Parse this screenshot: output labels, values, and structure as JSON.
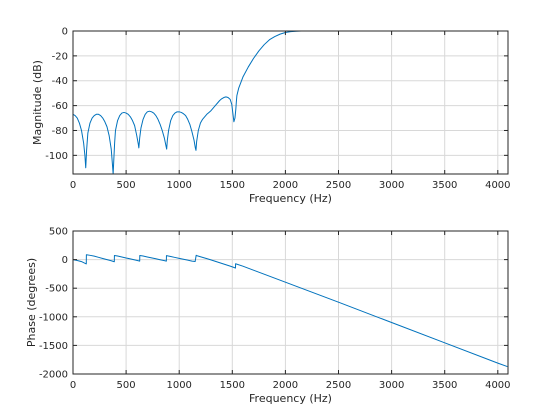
{
  "chart_data": [
    {
      "type": "line",
      "title": "",
      "xlabel": "Frequency (Hz)",
      "ylabel": "Magnitude (dB)",
      "xlim": [
        0,
        4096
      ],
      "ylim": [
        -115,
        0
      ],
      "xticks": [
        0,
        500,
        1000,
        1500,
        2000,
        2500,
        3000,
        3500,
        4000
      ],
      "yticks": [
        0,
        -20,
        -40,
        -60,
        -80,
        -100
      ],
      "grid": true,
      "color": "#0072bd",
      "series": [
        {
          "x": [
            0,
            20,
            40,
            60,
            80,
            100,
            112,
            120,
            128,
            140,
            160,
            180,
            200,
            220,
            240,
            260,
            280,
            300,
            320,
            340,
            360,
            372,
            378,
            384,
            392,
            400,
            420,
            440,
            460,
            480,
            500,
            520,
            540,
            560,
            580,
            600,
            615,
            620,
            628,
            640,
            660,
            680,
            700,
            720,
            740,
            760,
            780,
            800,
            820,
            840,
            860,
            877,
            882,
            888,
            900,
            920,
            940,
            960,
            980,
            1000,
            1020,
            1040,
            1060,
            1080,
            1100,
            1120,
            1140,
            1152,
            1158,
            1164,
            1180,
            1200,
            1220,
            1240,
            1260,
            1280,
            1300,
            1320,
            1340,
            1360,
            1380,
            1400,
            1420,
            1440,
            1460,
            1480,
            1495,
            1505,
            1515,
            1525,
            1533,
            1538,
            1543,
            1560,
            1600,
            1650,
            1700,
            1750,
            1800,
            1850,
            1900,
            1950,
            2000,
            2050,
            2100,
            2150,
            2200,
            2300,
            2500,
            3000,
            3500,
            4096
          ],
          "y": [
            -67,
            -68,
            -70,
            -74,
            -80,
            -90,
            -100,
            -110,
            -96,
            -82,
            -74,
            -70,
            -68,
            -67,
            -67,
            -68,
            -70,
            -73,
            -77,
            -84,
            -95,
            -108,
            -115,
            -104,
            -90,
            -80,
            -72,
            -68,
            -66,
            -65.5,
            -66,
            -67,
            -69,
            -72,
            -76,
            -84,
            -91,
            -94,
            -86,
            -78,
            -71,
            -67,
            -65,
            -64.5,
            -65,
            -66,
            -68,
            -71,
            -75,
            -80,
            -86,
            -93,
            -95,
            -88,
            -80,
            -72,
            -68,
            -66,
            -65,
            -65,
            -65.5,
            -66.5,
            -68,
            -71,
            -75,
            -81,
            -88,
            -94,
            -96,
            -89,
            -80,
            -74,
            -71,
            -69,
            -67,
            -65.5,
            -64,
            -62,
            -60,
            -58,
            -56,
            -54.5,
            -53.5,
            -53,
            -53.5,
            -55,
            -59,
            -66,
            -73,
            -70,
            -63,
            -57,
            -52,
            -46,
            -37,
            -29,
            -22,
            -16,
            -11,
            -7,
            -4.5,
            -2.5,
            -1.2,
            -0.5,
            -0.2,
            0,
            0,
            0,
            0,
            0,
            0,
            0
          ]
        }
      ]
    },
    {
      "type": "line",
      "title": "",
      "xlabel": "Frequency (Hz)",
      "ylabel": "Phase (degrees)",
      "xlim": [
        0,
        4096
      ],
      "ylim": [
        -2000,
        500
      ],
      "xticks": [
        0,
        500,
        1000,
        1500,
        2000,
        2500,
        3000,
        3500,
        4000
      ],
      "yticks": [
        500,
        0,
        -500,
        -1000,
        -1500,
        -2000
      ],
      "grid": true,
      "color": "#0072bd",
      "series": [
        {
          "x": [
            0,
            40,
            80,
            125,
            126,
            160,
            200,
            240,
            280,
            320,
            360,
            389,
            390,
            420,
            460,
            500,
            540,
            580,
            620,
            628,
            629,
            660,
            700,
            740,
            780,
            820,
            860,
            879,
            880,
            920,
            960,
            1000,
            1040,
            1080,
            1120,
            1150,
            1160,
            1161,
            1200,
            1240,
            1280,
            1320,
            1360,
            1400,
            1440,
            1480,
            1520,
            1530,
            1531,
            1600,
            1800,
            2000,
            2200,
            2500,
            3000,
            3500,
            4000,
            4090
          ],
          "y": [
            0,
            -15,
            -35,
            -75,
            85,
            75,
            60,
            40,
            20,
            0,
            -20,
            -38,
            72,
            62,
            46,
            28,
            12,
            -4,
            -22,
            -26,
            72,
            62,
            46,
            30,
            14,
            -2,
            -18,
            -26,
            70,
            54,
            38,
            22,
            6,
            -10,
            -26,
            -34,
            76,
            72,
            50,
            28,
            6,
            -18,
            -42,
            -66,
            -90,
            -114,
            -140,
            -148,
            -72,
            -115,
            -255,
            -395,
            -535,
            -745,
            -1100,
            -1455,
            -1810,
            -1870
          ]
        }
      ]
    }
  ]
}
